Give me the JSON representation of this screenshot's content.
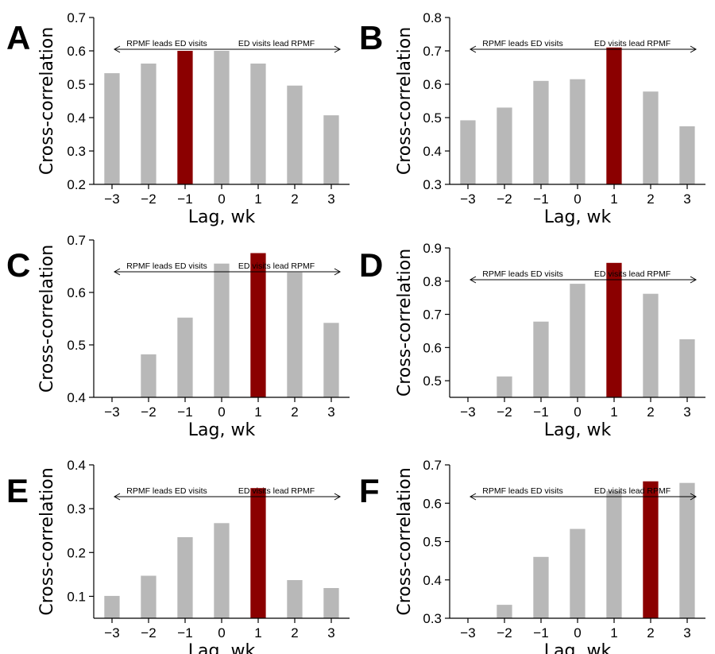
{
  "colors": {
    "bar": "#b8b8b8",
    "highlight": "#8b0000"
  },
  "chart_data": [
    {
      "panel": "A",
      "type": "bar",
      "categories": [
        "−3",
        "−2",
        "−1",
        "0",
        "1",
        "2",
        "3"
      ],
      "values": [
        0.533,
        0.562,
        0.6,
        0.6,
        0.562,
        0.496,
        0.407
      ],
      "highlight_index": 2,
      "ylim": [
        0.2,
        0.7
      ],
      "yticks": [
        "0.2",
        "0.3",
        "0.4",
        "0.5",
        "0.6",
        "0.7"
      ],
      "xlabel": "Lag, wk",
      "ylabel": "Cross-correlation",
      "annotation_left": "RPMF leads ED visits",
      "annotation_right": "ED visits lead RPMF"
    },
    {
      "panel": "B",
      "type": "bar",
      "categories": [
        "−3",
        "−2",
        "−1",
        "0",
        "1",
        "2",
        "3"
      ],
      "values": [
        0.492,
        0.53,
        0.61,
        0.615,
        0.71,
        0.578,
        0.474
      ],
      "highlight_index": 4,
      "ylim": [
        0.3,
        0.8
      ],
      "yticks": [
        "0.3",
        "0.4",
        "0.5",
        "0.6",
        "0.7",
        "0.8"
      ],
      "xlabel": "Lag, wk",
      "ylabel": "Cross-correlation",
      "annotation_left": "RPMF leads ED visits",
      "annotation_right": "ED visits lead RPMF"
    },
    {
      "panel": "C",
      "type": "bar",
      "categories": [
        "−3",
        "−2",
        "−1",
        "0",
        "1",
        "2",
        "3"
      ],
      "values": [
        0.4,
        0.482,
        0.552,
        0.655,
        0.675,
        0.638,
        0.542
      ],
      "highlight_index": 4,
      "ylim": [
        0.4,
        0.7
      ],
      "yticks": [
        "0.4",
        "0.5",
        "0.6",
        "0.7"
      ],
      "xlabel": "Lag, wk",
      "ylabel": "Cross-correlation",
      "annotation_left": "RPMF leads ED visits",
      "annotation_right": "ED visits lead RPMF"
    },
    {
      "panel": "D",
      "type": "bar",
      "categories": [
        "−3",
        "−2",
        "−1",
        "0",
        "1",
        "2",
        "3"
      ],
      "values": [
        0.45,
        0.513,
        0.678,
        0.792,
        0.855,
        0.762,
        0.625
      ],
      "highlight_index": 4,
      "ylim": [
        0.45,
        0.9
      ],
      "yticks": [
        "0.5",
        "0.6",
        "0.7",
        "0.8",
        "0.9"
      ],
      "xlabel": "Lag, wk",
      "ylabel": "Cross-correlation",
      "annotation_left": "RPMF leads ED visits",
      "annotation_right": "ED visits lead RPMF"
    },
    {
      "panel": "E",
      "type": "bar",
      "categories": [
        "−3",
        "−2",
        "−1",
        "0",
        "1",
        "2",
        "3"
      ],
      "values": [
        0.101,
        0.147,
        0.235,
        0.267,
        0.347,
        0.137,
        0.119
      ],
      "highlight_index": 4,
      "ylim": [
        0.05,
        0.4
      ],
      "yticks": [
        "0.1",
        "0.2",
        "0.3",
        "0.4"
      ],
      "xlabel": "Lag, wk",
      "ylabel": "Cross-correlation",
      "annotation_left": "RPMF leads ED visits",
      "annotation_right": "ED visits lead RPMF"
    },
    {
      "panel": "F",
      "type": "bar",
      "categories": [
        "−3",
        "−2",
        "−1",
        "0",
        "1",
        "2",
        "3"
      ],
      "values": [
        0.3,
        0.335,
        0.46,
        0.533,
        0.632,
        0.657,
        0.653
      ],
      "highlight_index": 5,
      "ylim": [
        0.3,
        0.7
      ],
      "yticks": [
        "0.3",
        "0.4",
        "0.5",
        "0.6",
        "0.7"
      ],
      "xlabel": "Lag, wk",
      "ylabel": "Cross-correlation",
      "annotation_left": "RPMF leads ED visits",
      "annotation_right": "ED visits lead RPMF"
    }
  ]
}
